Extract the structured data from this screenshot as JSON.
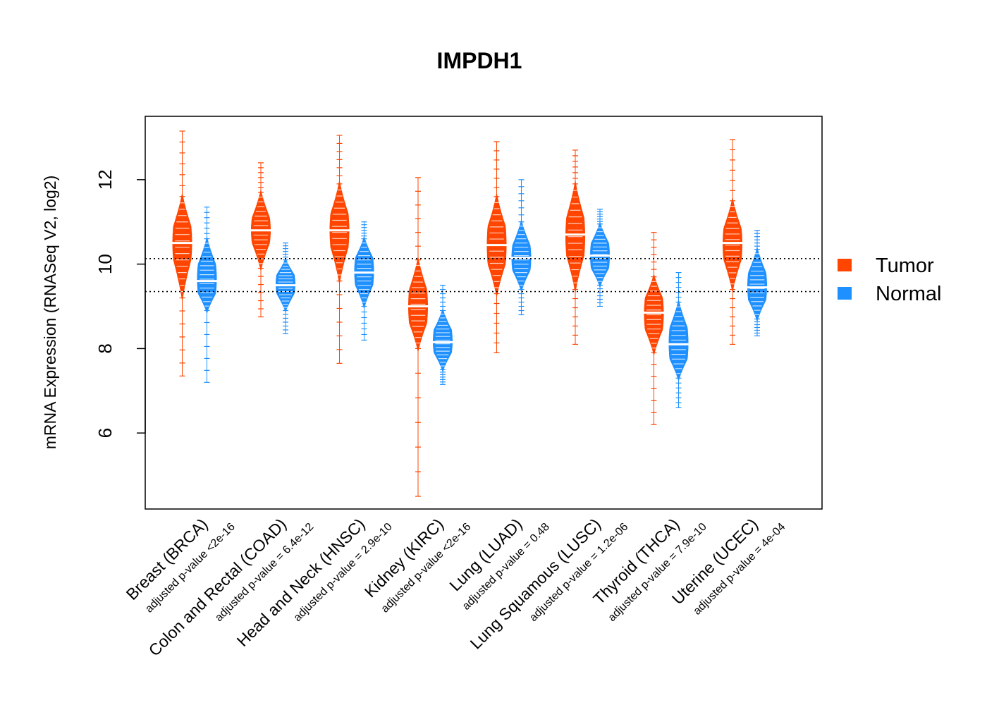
{
  "chart_data": {
    "type": "beanplot",
    "title": "IMPDH1",
    "xlabel": "",
    "ylabel": "mRNA Expression (RNASeq V2, log2)",
    "ylim": [
      4.2,
      13.5
    ],
    "yticks": [
      6,
      8,
      10,
      12
    ],
    "reference_lines": [
      10.13,
      9.35
    ],
    "legend": {
      "position": "right",
      "entries": [
        {
          "name": "Tumor",
          "color": "#FF4500"
        },
        {
          "name": "Normal",
          "color": "#1E90FF"
        }
      ]
    },
    "series": [
      {
        "name": "Tumor",
        "color": "#FF4500",
        "medians": [
          10.5,
          10.8,
          10.8,
          9.0,
          10.45,
          10.7,
          8.85,
          10.5
        ]
      },
      {
        "name": "Normal",
        "color": "#1E90FF",
        "medians": [
          9.6,
          9.5,
          9.8,
          8.15,
          10.15,
          10.2,
          8.1,
          9.45
        ]
      }
    ],
    "groups": [
      {
        "label": "Breast (BRCA)",
        "pvalue": "adjusted p-value <2e-16",
        "tumor": {
          "q05": 9.2,
          "q25": 10.1,
          "median": 10.5,
          "q75": 10.9,
          "q95": 11.6,
          "min": 7.35,
          "max": 13.15
        },
        "normal": {
          "q05": 8.9,
          "q25": 9.3,
          "median": 9.6,
          "q75": 10.0,
          "q95": 10.6,
          "min": 7.2,
          "max": 11.35
        }
      },
      {
        "label": "Colon and Rectal (COAD)",
        "pvalue": "adjusted p-value = 6.4e-12",
        "tumor": {
          "q05": 9.9,
          "q25": 10.5,
          "median": 10.8,
          "q75": 11.1,
          "q95": 11.7,
          "min": 8.75,
          "max": 12.4
        },
        "normal": {
          "q05": 8.9,
          "q25": 9.3,
          "median": 9.5,
          "q75": 9.75,
          "q95": 10.1,
          "min": 8.35,
          "max": 10.5
        }
      },
      {
        "label": "Head and Neck (HNSC)",
        "pvalue": "adjusted p-value = 2.9e-10",
        "tumor": {
          "q05": 9.6,
          "q25": 10.4,
          "median": 10.8,
          "q75": 11.2,
          "q95": 11.9,
          "min": 7.65,
          "max": 13.05
        },
        "normal": {
          "q05": 9.0,
          "q25": 9.5,
          "median": 9.8,
          "q75": 10.15,
          "q95": 10.6,
          "min": 8.2,
          "max": 11.0
        }
      },
      {
        "label": "Kidney (KIRC)",
        "pvalue": "adjusted p-value <2e-16",
        "tumor": {
          "q05": 8.0,
          "q25": 8.6,
          "median": 9.0,
          "q75": 9.4,
          "q95": 10.1,
          "min": 4.5,
          "max": 12.05
        },
        "normal": {
          "q05": 7.5,
          "q25": 7.9,
          "median": 8.15,
          "q75": 8.45,
          "q95": 8.9,
          "min": 7.15,
          "max": 9.5
        }
      },
      {
        "label": "Lung (LUAD)",
        "pvalue": "adjusted p-value = 0.48",
        "tumor": {
          "q05": 9.3,
          "q25": 10.0,
          "median": 10.45,
          "q75": 10.9,
          "q95": 11.6,
          "min": 7.9,
          "max": 12.9
        },
        "normal": {
          "q05": 9.4,
          "q25": 9.85,
          "median": 10.15,
          "q75": 10.45,
          "q95": 11.0,
          "min": 8.8,
          "max": 12.0
        }
      },
      {
        "label": "Lung Squamous (LUSC)",
        "pvalue": "adjusted p-value = 1.2e-06",
        "tumor": {
          "q05": 9.4,
          "q25": 10.2,
          "median": 10.7,
          "q75": 11.1,
          "q95": 11.9,
          "min": 8.1,
          "max": 12.7
        },
        "normal": {
          "q05": 9.5,
          "q25": 9.9,
          "median": 10.2,
          "q75": 10.5,
          "q95": 10.95,
          "min": 9.0,
          "max": 11.3
        }
      },
      {
        "label": "Thyroid (THCA)",
        "pvalue": "adjusted p-value = 7.9e-10",
        "tumor": {
          "q05": 7.9,
          "q25": 8.45,
          "median": 8.85,
          "q75": 9.2,
          "q95": 9.7,
          "min": 6.2,
          "max": 10.75
        },
        "normal": {
          "q05": 7.3,
          "q25": 7.75,
          "median": 8.1,
          "q75": 8.5,
          "q95": 9.1,
          "min": 6.6,
          "max": 9.8
        }
      },
      {
        "label": "Uterine (UCEC)",
        "pvalue": "adjusted p-value = 4e-04",
        "tumor": {
          "q05": 9.4,
          "q25": 10.1,
          "median": 10.5,
          "q75": 10.85,
          "q95": 11.5,
          "min": 8.1,
          "max": 12.95
        },
        "normal": {
          "q05": 8.7,
          "q25": 9.15,
          "median": 9.45,
          "q75": 9.8,
          "q95": 10.35,
          "min": 8.3,
          "max": 10.8
        }
      }
    ]
  }
}
